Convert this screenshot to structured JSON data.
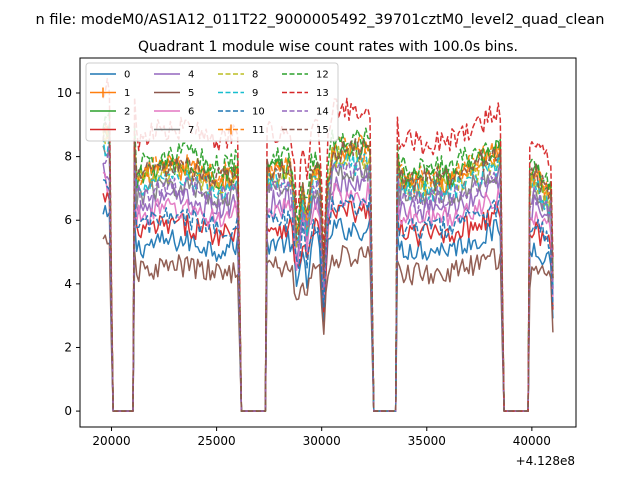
{
  "chart_data": {
    "type": "line",
    "suptitle": "n file: modeM0/AS1A12_011T22_9000005492_39701cztM0_level2_quad_clean",
    "title": "Quadrant 1 module wise count rates with 100.0s bins.",
    "xlabel": "",
    "ylabel": "",
    "x_offset_label": "+4.128e8",
    "xlim": [
      18500,
      42100
    ],
    "ylim": [
      -0.5,
      11.1
    ],
    "x_ticks": [
      20000,
      25000,
      30000,
      35000,
      40000
    ],
    "y_ticks": [
      0,
      2,
      4,
      6,
      8,
      10
    ],
    "grid": false,
    "legend": {
      "placement": "upper-left",
      "columns": 4
    },
    "segments": [
      {
        "x_start": 19600,
        "x_end": 20000
      },
      {
        "x_start": 21100,
        "x_end": 26100
      },
      {
        "x_start": 27400,
        "x_end": 32400
      },
      {
        "x_start": 33600,
        "x_end": 38600
      },
      {
        "x_start": 39900,
        "x_end": 41000
      }
    ],
    "gaps": [
      {
        "x_start": 20000,
        "x_end": 21100
      },
      {
        "x_start": 26100,
        "x_end": 27400
      },
      {
        "x_start": 32400,
        "x_end": 33600
      },
      {
        "x_start": 38600,
        "x_end": 39900
      }
    ],
    "series": [
      {
        "name": "0",
        "color": "#1f77b4",
        "dashed": false,
        "marker": false,
        "level": 5.3
      },
      {
        "name": "1",
        "color": "#ff7f0e",
        "dashed": false,
        "marker": true,
        "level": 7.5
      },
      {
        "name": "2",
        "color": "#2ca02c",
        "dashed": false,
        "marker": false,
        "level": 7.6
      },
      {
        "name": "3",
        "color": "#d62728",
        "dashed": false,
        "marker": false,
        "level": 5.8
      },
      {
        "name": "4",
        "color": "#9467bd",
        "dashed": false,
        "marker": false,
        "level": 6.6
      },
      {
        "name": "5",
        "color": "#8c564b",
        "dashed": false,
        "marker": false,
        "level": 4.5
      },
      {
        "name": "6",
        "color": "#e377c2",
        "dashed": false,
        "marker": false,
        "level": 6.3
      },
      {
        "name": "7",
        "color": "#7f7f7f",
        "dashed": false,
        "marker": false,
        "level": 7.0
      },
      {
        "name": "8",
        "color": "#bcbd22",
        "dashed": true,
        "marker": false,
        "level": 7.4
      },
      {
        "name": "9",
        "color": "#17becf",
        "dashed": true,
        "marker": false,
        "level": 7.2
      },
      {
        "name": "10",
        "color": "#1f77b4",
        "dashed": true,
        "marker": false,
        "level": 6.0
      },
      {
        "name": "11",
        "color": "#ff7f0e",
        "dashed": true,
        "marker": true,
        "level": 7.7
      },
      {
        "name": "12",
        "color": "#2ca02c",
        "dashed": true,
        "marker": false,
        "level": 8.0
      },
      {
        "name": "13",
        "color": "#d62728",
        "dashed": true,
        "marker": false,
        "level": 8.8
      },
      {
        "name": "14",
        "color": "#9467bd",
        "dashed": true,
        "marker": false,
        "level": 7.0
      },
      {
        "name": "15",
        "color": "#8c564b",
        "dashed": true,
        "marker": false,
        "level": 7.6
      }
    ]
  }
}
